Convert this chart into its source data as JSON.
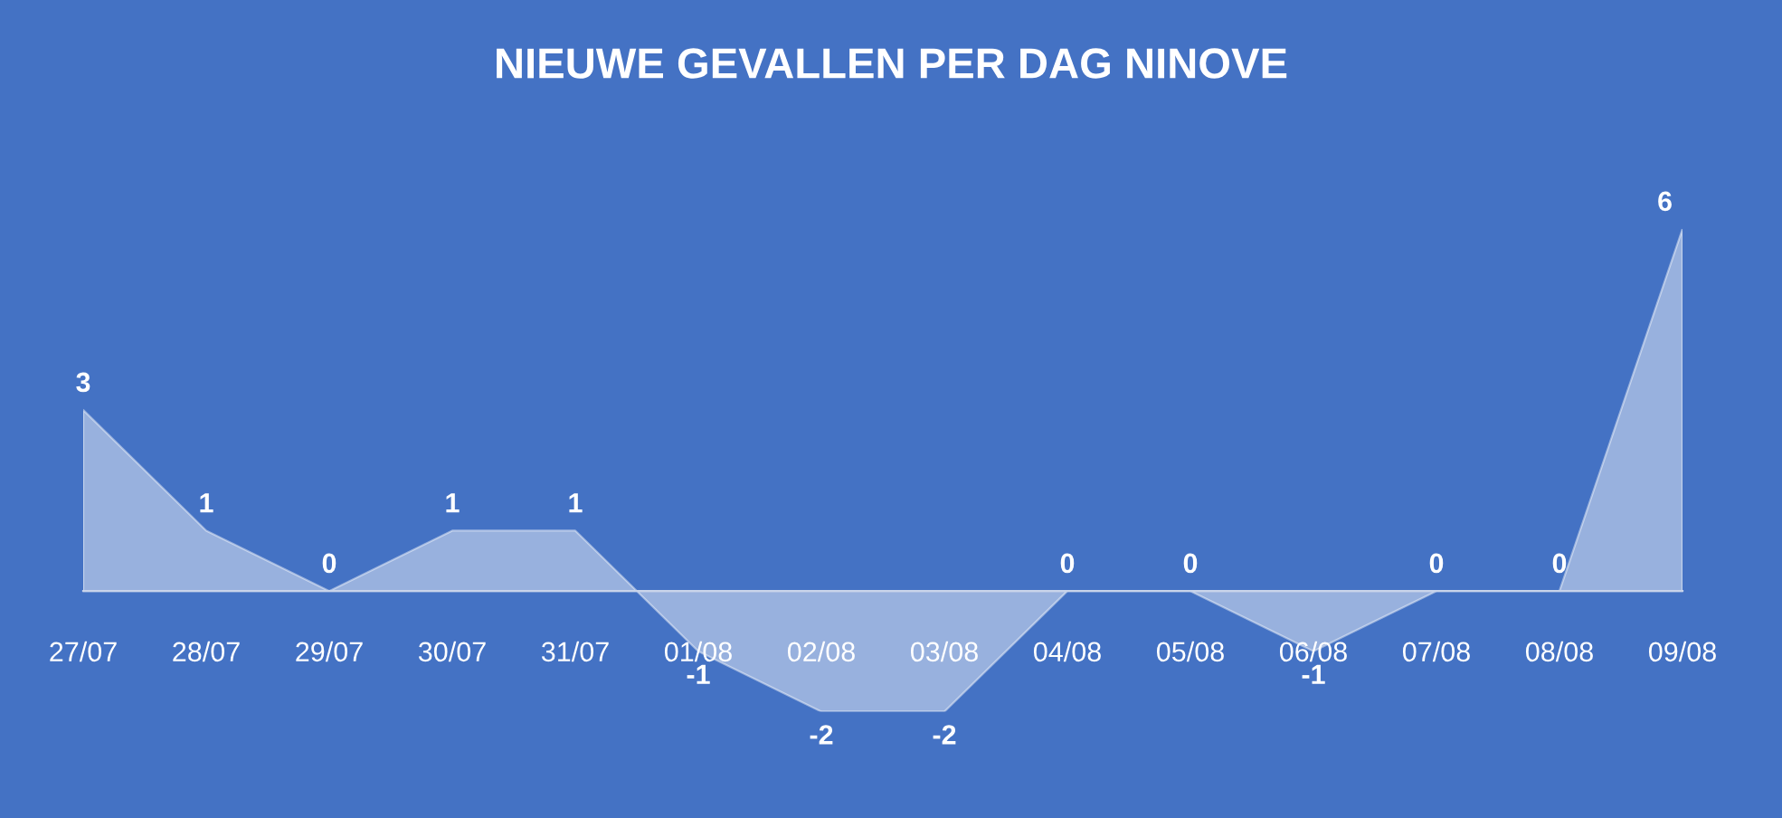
{
  "chart_data": {
    "type": "area",
    "title": "NIEUWE GEVALLEN PER DAG NINOVE",
    "categories": [
      "27/07",
      "28/07",
      "29/07",
      "30/07",
      "31/07",
      "01/08",
      "02/08",
      "03/08",
      "04/08",
      "05/08",
      "06/08",
      "07/08",
      "08/08",
      "09/08"
    ],
    "values": [
      3,
      1,
      0,
      1,
      1,
      -1,
      -2,
      -2,
      0,
      0,
      -1,
      0,
      0,
      6
    ],
    "color": "#ffffff",
    "data_labels": true
  }
}
